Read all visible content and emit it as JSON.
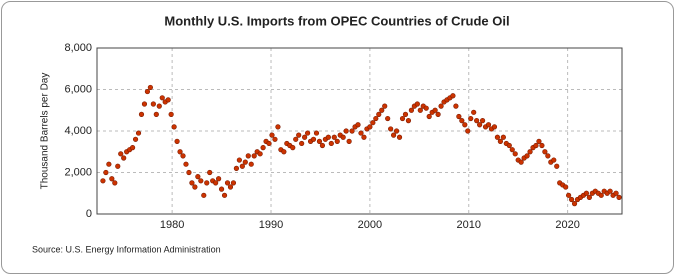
{
  "chart_data": {
    "type": "scatter",
    "title": "Monthly U.S. Imports from OPEC Countries of Crude Oil",
    "y_label": "Thousand Barrels per Day",
    "source": "Source: U.S. Energy Information Administration",
    "color": "#cc3300",
    "grid": true,
    "xlim": [
      1972.4,
      2025.5
    ],
    "xticks": [
      1980,
      1990,
      2000,
      2010,
      2020
    ],
    "ylim": [
      0,
      8000
    ],
    "yticks": [
      0,
      {
        "value": 2000,
        "label": "2,000"
      },
      {
        "value": 4000,
        "label": "4,000"
      },
      {
        "value": 6000,
        "label": "6,000"
      },
      {
        "value": 8000,
        "label": "8,000"
      }
    ],
    "x": [
      1973.0,
      1973.3,
      1973.6,
      1973.9,
      1974.2,
      1974.5,
      1974.8,
      1975.1,
      1975.4,
      1975.7,
      1976.0,
      1976.3,
      1976.6,
      1976.9,
      1977.2,
      1977.5,
      1977.8,
      1978.1,
      1978.4,
      1978.7,
      1979.0,
      1979.3,
      1979.6,
      1979.9,
      1980.2,
      1980.5,
      1980.8,
      1981.1,
      1981.4,
      1981.7,
      1982.0,
      1982.3,
      1982.6,
      1982.9,
      1983.2,
      1983.5,
      1983.8,
      1984.1,
      1984.4,
      1984.7,
      1985.0,
      1985.3,
      1985.6,
      1985.9,
      1986.2,
      1986.5,
      1986.8,
      1987.1,
      1987.4,
      1987.7,
      1988.0,
      1988.3,
      1988.6,
      1988.9,
      1989.2,
      1989.5,
      1989.8,
      1990.1,
      1990.4,
      1990.7,
      1991.0,
      1991.3,
      1991.6,
      1991.9,
      1992.2,
      1992.5,
      1992.8,
      1993.1,
      1993.4,
      1993.7,
      1994.0,
      1994.3,
      1994.6,
      1994.9,
      1995.2,
      1995.5,
      1995.8,
      1996.1,
      1996.4,
      1996.7,
      1997.0,
      1997.3,
      1997.6,
      1997.9,
      1998.2,
      1998.5,
      1998.8,
      1999.1,
      1999.4,
      1999.7,
      2000.0,
      2000.3,
      2000.6,
      2000.9,
      2001.2,
      2001.5,
      2001.8,
      2002.1,
      2002.4,
      2002.7,
      2003.0,
      2003.3,
      2003.6,
      2003.9,
      2004.2,
      2004.5,
      2004.8,
      2005.1,
      2005.4,
      2005.7,
      2006.0,
      2006.3,
      2006.6,
      2006.9,
      2007.2,
      2007.5,
      2007.8,
      2008.1,
      2008.4,
      2008.7,
      2009.0,
      2009.3,
      2009.6,
      2009.9,
      2010.2,
      2010.5,
      2010.8,
      2011.1,
      2011.4,
      2011.7,
      2012.0,
      2012.3,
      2012.6,
      2012.9,
      2013.2,
      2013.5,
      2013.8,
      2014.1,
      2014.4,
      2014.7,
      2015.0,
      2015.3,
      2015.6,
      2015.9,
      2016.2,
      2016.5,
      2016.8,
      2017.1,
      2017.4,
      2017.7,
      2018.0,
      2018.3,
      2018.6,
      2018.9,
      2019.2,
      2019.5,
      2019.8,
      2020.1,
      2020.4,
      2020.7,
      2021.0,
      2021.3,
      2021.6,
      2021.9,
      2022.2,
      2022.5,
      2022.8,
      2023.1,
      2023.4,
      2023.7,
      2024.0,
      2024.3,
      2024.6,
      2024.9,
      2025.2
    ],
    "values": [
      1600,
      2000,
      2400,
      1700,
      1500,
      2300,
      2900,
      2700,
      3000,
      3100,
      3200,
      3600,
      3900,
      4800,
      5300,
      5900,
      6100,
      5300,
      4800,
      5200,
      5600,
      5400,
      5500,
      4800,
      4200,
      3500,
      3000,
      2800,
      2400,
      2000,
      1500,
      1300,
      1800,
      1600,
      900,
      1500,
      2000,
      1600,
      1500,
      1700,
      1200,
      900,
      1500,
      1300,
      1500,
      2200,
      2600,
      2300,
      2500,
      2800,
      2400,
      2800,
      3000,
      2900,
      3200,
      3500,
      3400,
      3800,
      3600,
      4200,
      3100,
      3000,
      3400,
      3300,
      3200,
      3600,
      3800,
      3400,
      3700,
      3900,
      3500,
      3600,
      3900,
      3500,
      3300,
      3600,
      3700,
      3400,
      3700,
      3500,
      3800,
      3700,
      4000,
      3500,
      4000,
      4200,
      4300,
      3900,
      3700,
      4100,
      4200,
      4400,
      4600,
      4800,
      5000,
      5200,
      4600,
      4100,
      3800,
      4000,
      3700,
      4600,
      4800,
      4500,
      5000,
      5200,
      5300,
      5000,
      5200,
      5100,
      4700,
      4900,
      5000,
      4800,
      5200,
      5400,
      5500,
      5600,
      5700,
      5200,
      4700,
      4500,
      4300,
      4000,
      4600,
      4900,
      4500,
      4300,
      4500,
      4200,
      4300,
      4100,
      4200,
      3700,
      3500,
      3700,
      3400,
      3300,
      3100,
      2900,
      2600,
      2500,
      2700,
      2800,
      3000,
      3200,
      3300,
      3500,
      3300,
      3000,
      2800,
      2500,
      2600,
      2300,
      1500,
      1400,
      1300,
      900,
      700,
      500,
      700,
      800,
      900,
      1000,
      800,
      1000,
      1100,
      1000,
      900,
      1100,
      1000,
      1100,
      900,
      1000,
      800
    ]
  }
}
